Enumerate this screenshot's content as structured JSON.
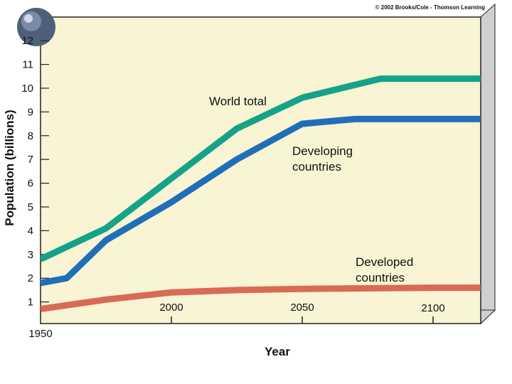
{
  "chart_data": {
    "type": "line",
    "title": "",
    "credit": "© 2002 Brooks/Cole - Thomson Learning",
    "xlabel": "Year",
    "ylabel": "Population (billions)",
    "xlim": [
      1950,
      2150
    ],
    "ylim": [
      0,
      13
    ],
    "x_ticks": [
      1950,
      2000,
      2050,
      2100
    ],
    "y_ticks": [
      1,
      2,
      3,
      4,
      5,
      6,
      7,
      8,
      9,
      10,
      11,
      12
    ],
    "grid": false,
    "series": [
      {
        "key": "world",
        "name": "World total",
        "color": "#13a389",
        "x": [
          1950,
          1975,
          2000,
          2025,
          2050,
          2080,
          2150
        ],
        "y": [
          2.8,
          4.1,
          6.2,
          8.3,
          9.6,
          10.4,
          10.4
        ]
      },
      {
        "key": "developing",
        "name": "Developing countries",
        "color": "#1f6fb8",
        "x": [
          1950,
          1960,
          1975,
          2000,
          2025,
          2050,
          2070,
          2150
        ],
        "y": [
          1.8,
          2.0,
          3.6,
          5.2,
          7.0,
          8.5,
          8.7,
          8.7
        ]
      },
      {
        "key": "developed",
        "name": "Developed countries",
        "color": "#d96a55",
        "x": [
          1950,
          1975,
          2000,
          2025,
          2050,
          2100,
          2150
        ],
        "y": [
          0.7,
          1.1,
          1.4,
          1.5,
          1.55,
          1.6,
          1.6
        ]
      }
    ],
    "annotations": [
      {
        "series": "world",
        "lines": [
          "World total"
        ]
      },
      {
        "series": "developing",
        "lines": [
          "Developing",
          "countries"
        ]
      },
      {
        "series": "developed",
        "lines": [
          "Developed",
          "countries"
        ]
      }
    ],
    "colors": {
      "plot_background": "#f8f4d4",
      "frame_shadow": "#cfcfcf"
    }
  }
}
